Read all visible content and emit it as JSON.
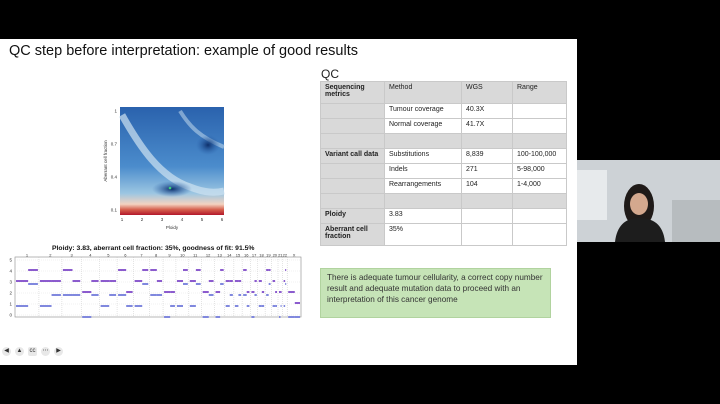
{
  "slide": {
    "title": "QC step before interpretation: example of good results",
    "qc_label": "QC",
    "table": {
      "headers": [
        "Sequencing metrics",
        "Method",
        "WGS",
        "Range"
      ],
      "rows": [
        [
          "",
          "Tumour coverage",
          "40.3X",
          ""
        ],
        [
          "",
          "Normal coverage",
          "41.7X",
          ""
        ],
        [
          "",
          "",
          "",
          ""
        ],
        [
          "Variant call data",
          "Substitutions",
          "8,839",
          "100-100,000"
        ],
        [
          "",
          "Indels",
          "271",
          "5-98,000"
        ],
        [
          "",
          "Rearrangements",
          "104",
          "1-4,000"
        ],
        [
          "",
          "",
          "",
          ""
        ],
        [
          "Ploidy",
          "3.83",
          "",
          ""
        ],
        [
          "Aberrant cell fraction",
          "35%",
          "",
          ""
        ]
      ]
    },
    "note": "There is adequate tumour cellularity, a correct copy number result and adequate mutation data to proceed with an interpretation of this cancer genome",
    "heatmap": {
      "ylabel": "Aberrant cell fraction",
      "xlabel": "Ploidy",
      "yticks": [
        "1",
        "0.7",
        "0.4",
        "0.1"
      ],
      "xticks": [
        "1",
        "2",
        "3",
        "4",
        "5",
        "6"
      ],
      "best_fit": {
        "ploidy": 3.83,
        "aberrant_fraction": 0.35
      }
    },
    "cn_plot": {
      "title": "Ploidy: 3.83, aberrant cell fraction: 35%, goodness of fit: 91.5%",
      "yticks": [
        "5",
        "4",
        "3",
        "2",
        "1",
        "0"
      ],
      "chromosomes": [
        "1",
        "2",
        "3",
        "4",
        "5",
        "6",
        "7",
        "8",
        "9",
        "10",
        "11",
        "12",
        "13",
        "14",
        "15",
        "16",
        "17",
        "18",
        "19",
        "20",
        "21",
        "22",
        "X"
      ]
    },
    "colors": {
      "purple": "#6f33c2",
      "blue": "#2b39c8",
      "heat_red": "#b2182b",
      "heat_blue": "#2f6fb5"
    }
  },
  "controls": [
    "prev-icon",
    "pen-icon",
    "captions-icon",
    "more-icon",
    "next-icon"
  ]
}
